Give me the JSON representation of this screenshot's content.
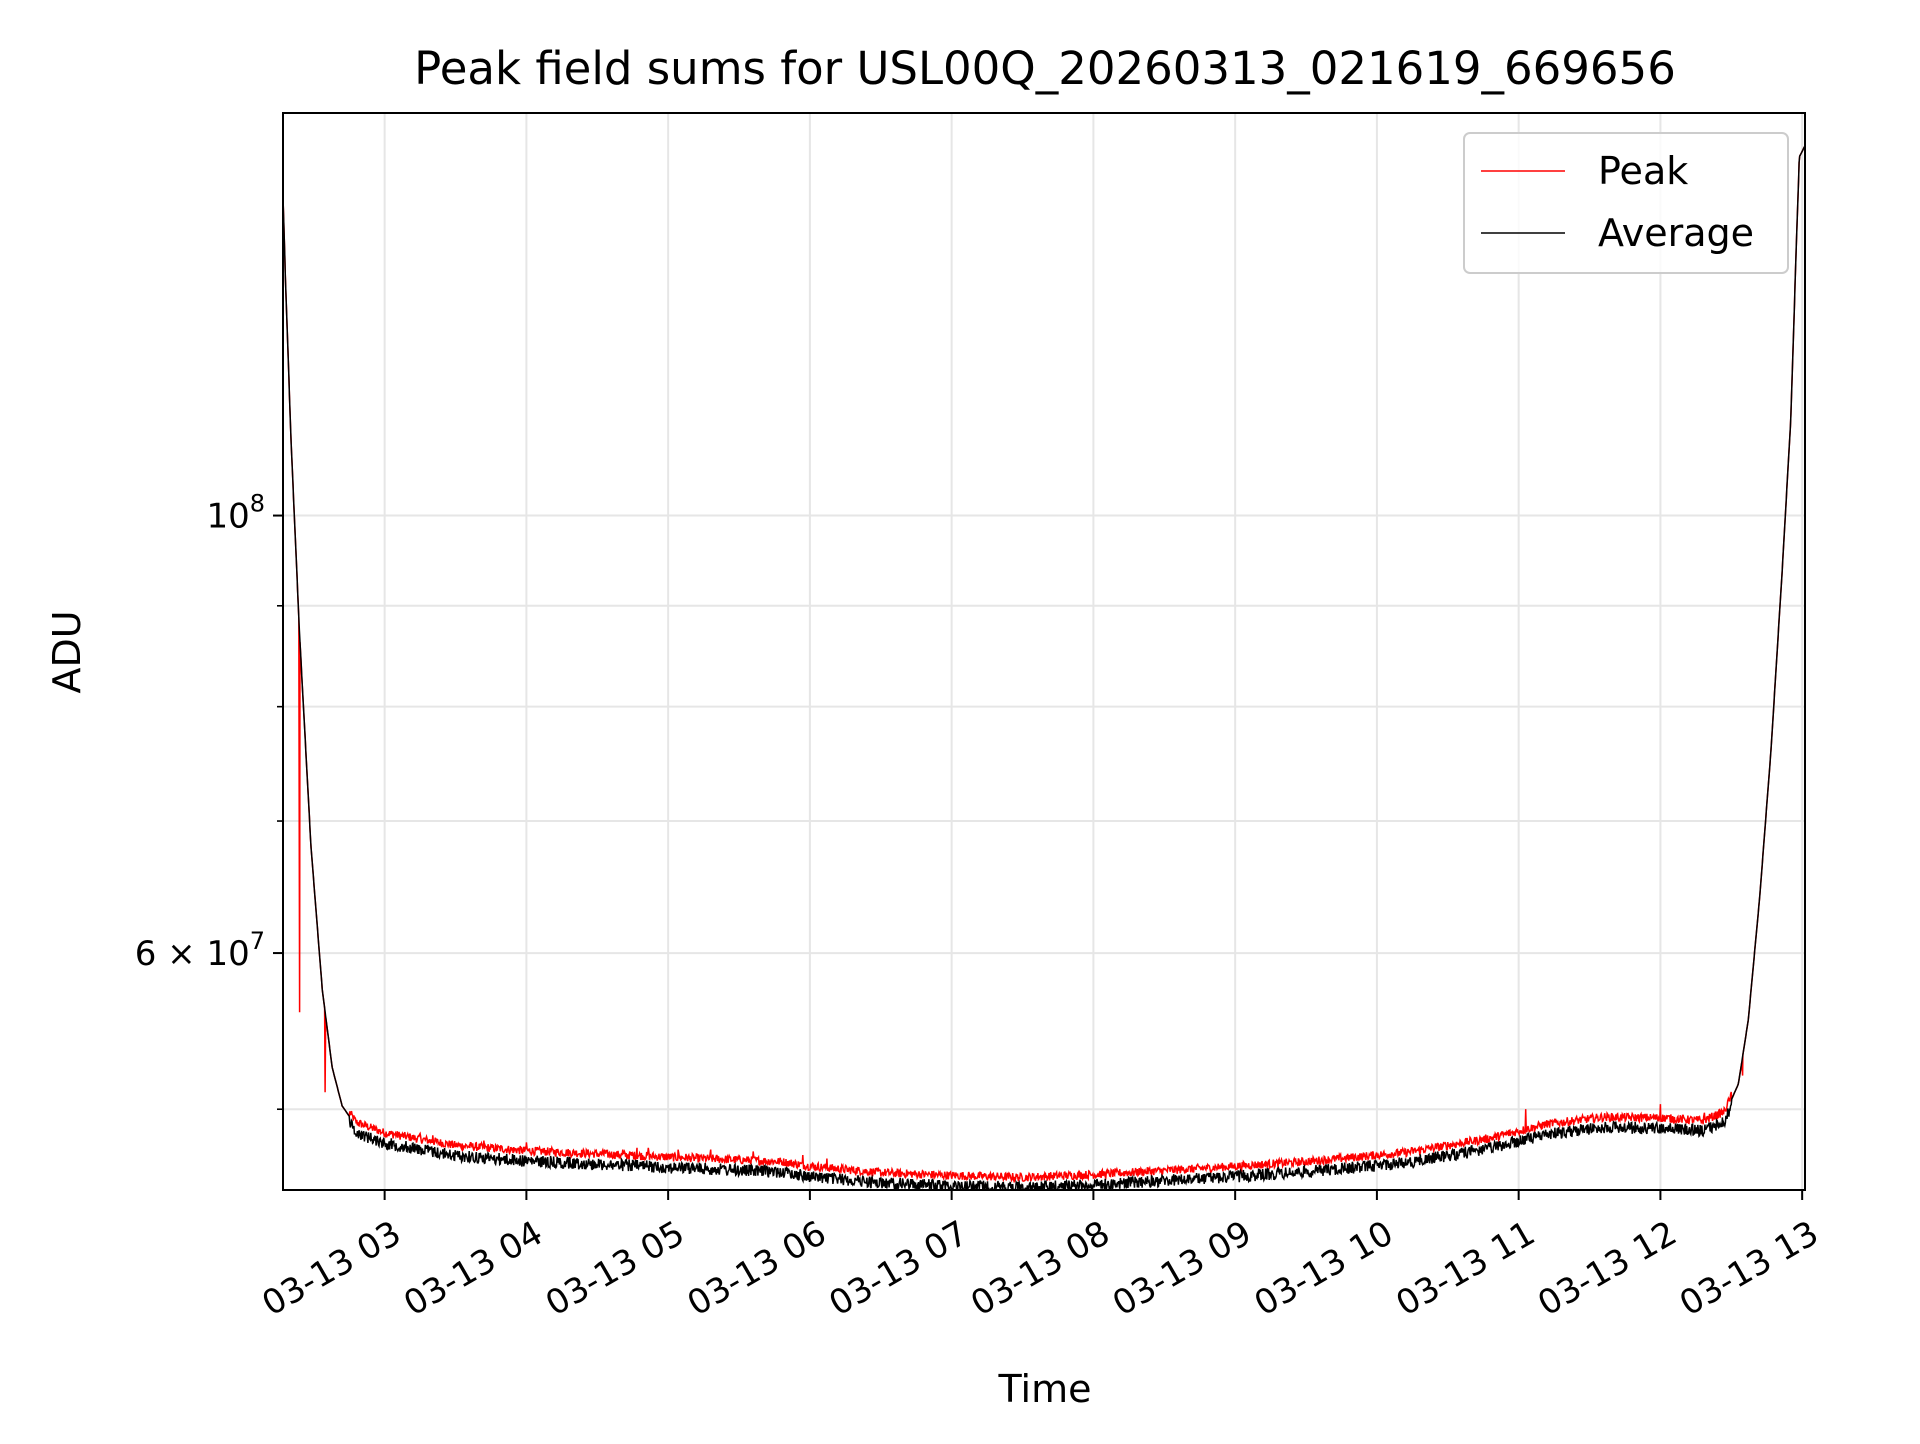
{
  "chart_data": {
    "type": "line",
    "title": "Peak field sums for USL00Q_20260313_021619_669656",
    "xlabel": "Time",
    "ylabel": "ADU",
    "yscale": "log",
    "ylim": [
      45500000,
      160000000
    ],
    "xlim_hours": [
      2.283,
      13.02
    ],
    "grid": true,
    "legend_position": "top-right",
    "x_ticks": [
      {
        "hour": 3,
        "label": "03-13 03"
      },
      {
        "hour": 4,
        "label": "03-13 04"
      },
      {
        "hour": 5,
        "label": "03-13 05"
      },
      {
        "hour": 6,
        "label": "03-13 06"
      },
      {
        "hour": 7,
        "label": "03-13 07"
      },
      {
        "hour": 8,
        "label": "03-13 08"
      },
      {
        "hour": 9,
        "label": "03-13 09"
      },
      {
        "hour": 10,
        "label": "03-13 10"
      },
      {
        "hour": 11,
        "label": "03-13 11"
      },
      {
        "hour": 12,
        "label": "03-13 12"
      },
      {
        "hour": 13,
        "label": "03-13 13"
      }
    ],
    "y_major_ticks": [
      {
        "value": 60000000,
        "base": "6 × 10",
        "exp": "7"
      },
      {
        "value": 100000000,
        "base": "10",
        "exp": "8"
      }
    ],
    "y_minor_ticks": [
      50000000,
      70000000,
      80000000,
      90000000
    ],
    "series": [
      {
        "name": "Peak",
        "color": "#ff0000",
        "noise_amplitude": 0.01,
        "spikes": [
          {
            "hour": 2.4,
            "value": 56000000
          },
          {
            "hour": 2.58,
            "value": 51000000
          },
          {
            "hour": 2.9,
            "value": 49000000
          },
          {
            "hour": 3.25,
            "value": 48600000
          },
          {
            "hour": 3.34,
            "value": 48500000
          },
          {
            "hour": 3.7,
            "value": 48200000
          },
          {
            "hour": 4.0,
            "value": 48100000
          },
          {
            "hour": 4.55,
            "value": 47700000
          },
          {
            "hour": 4.68,
            "value": 47700000
          },
          {
            "hour": 4.78,
            "value": 47800000
          },
          {
            "hour": 4.86,
            "value": 47800000
          },
          {
            "hour": 5.07,
            "value": 47700000
          },
          {
            "hour": 5.3,
            "value": 47700000
          },
          {
            "hour": 5.6,
            "value": 47600000
          },
          {
            "hour": 5.95,
            "value": 47400000
          },
          {
            "hour": 6.12,
            "value": 47200000
          },
          {
            "hour": 11.05,
            "value": 50000000
          },
          {
            "hour": 12.0,
            "value": 50300000
          },
          {
            "hour": 12.31,
            "value": 49800000
          },
          {
            "hour": 12.58,
            "value": 52000000
          }
        ]
      },
      {
        "name": "Average",
        "color": "#000000",
        "noise_amplitude": 0.014
      }
    ],
    "baseline": [
      {
        "hour": 2.283,
        "value": 145000000
      },
      {
        "hour": 2.3,
        "value": 132000000
      },
      {
        "hour": 2.34,
        "value": 109000000
      },
      {
        "hour": 2.4,
        "value": 87000000
      },
      {
        "hour": 2.48,
        "value": 68000000
      },
      {
        "hour": 2.56,
        "value": 57500000
      },
      {
        "hour": 2.63,
        "value": 52500000
      },
      {
        "hour": 2.7,
        "value": 50200000
      },
      {
        "hour": 2.8,
        "value": 49000000
      },
      {
        "hour": 3.0,
        "value": 48400000
      },
      {
        "hour": 3.5,
        "value": 47700000
      },
      {
        "hour": 4.0,
        "value": 47400000
      },
      {
        "hour": 5.0,
        "value": 47050000
      },
      {
        "hour": 5.8,
        "value": 46800000
      },
      {
        "hour": 6.0,
        "value": 46550000
      },
      {
        "hour": 6.5,
        "value": 46200000
      },
      {
        "hour": 7.0,
        "value": 46050000
      },
      {
        "hour": 7.5,
        "value": 45950000
      },
      {
        "hour": 8.0,
        "value": 46100000
      },
      {
        "hour": 8.8,
        "value": 46450000
      },
      {
        "hour": 9.5,
        "value": 46800000
      },
      {
        "hour": 10.2,
        "value": 47300000
      },
      {
        "hour": 10.8,
        "value": 48100000
      },
      {
        "hour": 11.2,
        "value": 48900000
      },
      {
        "hour": 11.6,
        "value": 49300000
      },
      {
        "hour": 12.0,
        "value": 49250000
      },
      {
        "hour": 12.3,
        "value": 49100000
      },
      {
        "hour": 12.45,
        "value": 49600000
      },
      {
        "hour": 12.55,
        "value": 51500000
      },
      {
        "hour": 12.62,
        "value": 55500000
      },
      {
        "hour": 12.7,
        "value": 64000000
      },
      {
        "hour": 12.78,
        "value": 76000000
      },
      {
        "hour": 12.86,
        "value": 94000000
      },
      {
        "hour": 12.92,
        "value": 112000000
      },
      {
        "hour": 12.96,
        "value": 138000000
      },
      {
        "hour": 12.98,
        "value": 152000000
      },
      {
        "hour": 13.02,
        "value": 154000000
      }
    ]
  }
}
